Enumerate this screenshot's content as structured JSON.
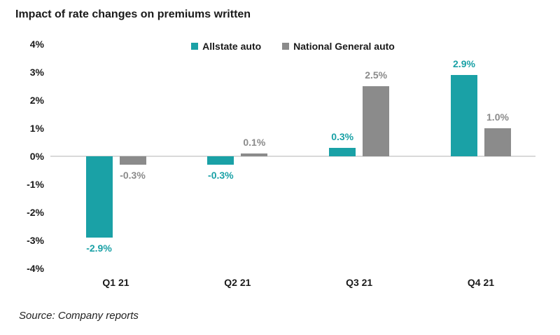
{
  "chart_data": {
    "type": "bar",
    "title": "Impact of rate changes on premiums written",
    "categories": [
      "Q1 21",
      "Q2 21",
      "Q3 21",
      "Q4 21"
    ],
    "series": [
      {
        "name": "Allstate auto",
        "color": "#1aa1a6",
        "values": [
          -2.9,
          -0.3,
          0.3,
          2.9
        ],
        "labels": [
          "-2.9%",
          "-0.3%",
          "0.3%",
          "2.9%"
        ]
      },
      {
        "name": "National General auto",
        "color": "#8b8b8b",
        "values": [
          -0.3,
          0.1,
          2.5,
          1.0
        ],
        "labels": [
          "-0.3%",
          "0.1%",
          "2.5%",
          "1.0%"
        ]
      }
    ],
    "y_ticks": [
      {
        "label": "4%",
        "value": 4
      },
      {
        "label": "3%",
        "value": 3
      },
      {
        "label": "2%",
        "value": 2
      },
      {
        "label": "1%",
        "value": 1
      },
      {
        "label": "0%",
        "value": 0
      },
      {
        "label": "-1%",
        "value": -1
      },
      {
        "label": "-2%",
        "value": -2
      },
      {
        "label": "-3%",
        "value": -3
      },
      {
        "label": "-4%",
        "value": -4
      }
    ],
    "ylim": [
      -4,
      4
    ],
    "grid": false,
    "legend_position": "top-center",
    "zero_line_color": "#d9d9d9"
  },
  "source": "Source: Company reports"
}
